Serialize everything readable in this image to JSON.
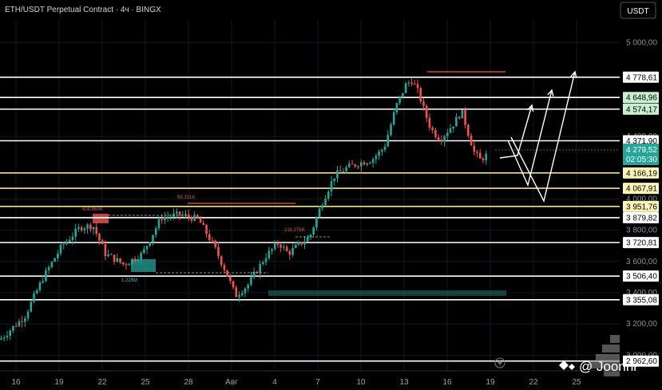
{
  "header": {
    "title": "ETH/USDT Perpetual Contract · 4ч · BINGX",
    "currency_button": "USDT"
  },
  "watermark": "@ Joonni",
  "current_price": {
    "value": "4 279,52",
    "countdown": "02:05:30"
  },
  "colors": {
    "background": "#000000",
    "up": "#26a69a",
    "down": "#ef5350",
    "level_white": "#ffffff",
    "level_yellow": "#f2e08a",
    "badge_green": "#c8efd0",
    "badge_yellow": "#fbf3b8",
    "badge_white": "#ffffff",
    "price_badge": "#26a69a"
  },
  "chart_data": {
    "type": "candlestick",
    "yrange": [
      2900,
      5150
    ],
    "y_ticks": [
      "5 000,00",
      "4 400,00",
      "4 000,00",
      "3 800,00",
      "3 600,00",
      "3 400,00",
      "3 200,00",
      "3 000,00"
    ],
    "y_tick_values": [
      5000,
      4400,
      4000,
      3800,
      3600,
      3400,
      3200,
      3000
    ],
    "x_ticks": [
      "16",
      "19",
      "22",
      "25",
      "28",
      "Авг",
      "4",
      "7",
      "10",
      "13",
      "16",
      "19",
      "22",
      "25"
    ],
    "levels": [
      {
        "value": 4778.61,
        "label": "4 778,61",
        "style": "white"
      },
      {
        "value": 4648.96,
        "label": "4 648,96",
        "style": "green"
      },
      {
        "value": 4574.17,
        "label": "4 574,17",
        "style": "green"
      },
      {
        "value": 4371.9,
        "label": "4 371,90",
        "style": "white"
      },
      {
        "value": 4166.19,
        "label": "4 166,19",
        "style": "yellow"
      },
      {
        "value": 4067.91,
        "label": "4 067,91",
        "style": "yellow"
      },
      {
        "value": 3951.76,
        "label": "3 951,76",
        "style": "yellow"
      },
      {
        "value": 3879.82,
        "label": "3 879,82",
        "style": "white"
      },
      {
        "value": 3720.81,
        "label": "3 720,81",
        "style": "white"
      },
      {
        "value": 3506.4,
        "label": "3 506,40",
        "style": "white"
      },
      {
        "value": 3355.08,
        "label": "3 355,08",
        "style": "white"
      },
      {
        "value": 2962.6,
        "label": "2 962,60",
        "style": "white"
      }
    ],
    "volume_labels": [
      {
        "text": "608.865K",
        "color": "red"
      },
      {
        "text": "98.331K",
        "color": "red"
      },
      {
        "text": "218.276K",
        "color": "red"
      },
      {
        "text": "1.225M",
        "color": "green"
      }
    ],
    "price_path": [
      [
        0,
        3100
      ],
      [
        0.04,
        3250
      ],
      [
        0.07,
        3500
      ],
      [
        0.1,
        3700
      ],
      [
        0.13,
        3820
      ],
      [
        0.15,
        3830
      ],
      [
        0.17,
        3650
      ],
      [
        0.2,
        3580
      ],
      [
        0.23,
        3650
      ],
      [
        0.26,
        3880
      ],
      [
        0.29,
        3900
      ],
      [
        0.32,
        3870
      ],
      [
        0.345,
        3700
      ],
      [
        0.365,
        3530
      ],
      [
        0.38,
        3380
      ],
      [
        0.4,
        3450
      ],
      [
        0.43,
        3640
      ],
      [
        0.45,
        3720
      ],
      [
        0.465,
        3650
      ],
      [
        0.48,
        3700
      ],
      [
        0.5,
        3760
      ],
      [
        0.52,
        3980
      ],
      [
        0.54,
        4150
      ],
      [
        0.56,
        4200
      ],
      [
        0.58,
        4230
      ],
      [
        0.6,
        4250
      ],
      [
        0.62,
        4330
      ],
      [
        0.64,
        4600
      ],
      [
        0.655,
        4730
      ],
      [
        0.665,
        4760
      ],
      [
        0.675,
        4680
      ],
      [
        0.685,
        4560
      ],
      [
        0.695,
        4450
      ],
      [
        0.71,
        4380
      ],
      [
        0.73,
        4470
      ],
      [
        0.745,
        4560
      ],
      [
        0.755,
        4430
      ],
      [
        0.765,
        4300
      ],
      [
        0.775,
        4250
      ],
      [
        0.785,
        4279.52
      ]
    ],
    "projection_paths": [
      [
        [
          4279.52,
          0.79
        ],
        [
          4100,
          0.815
        ],
        [
          4648.96,
          0.845
        ]
      ],
      [
        [
          4648.96,
          0.845
        ],
        [
          4020,
          0.85
        ],
        [
          4680,
          0.86
        ]
      ],
      [
        [
          4350,
          0.8
        ],
        [
          3980,
          0.86
        ],
        [
          4778.61,
          0.9
        ]
      ]
    ]
  }
}
